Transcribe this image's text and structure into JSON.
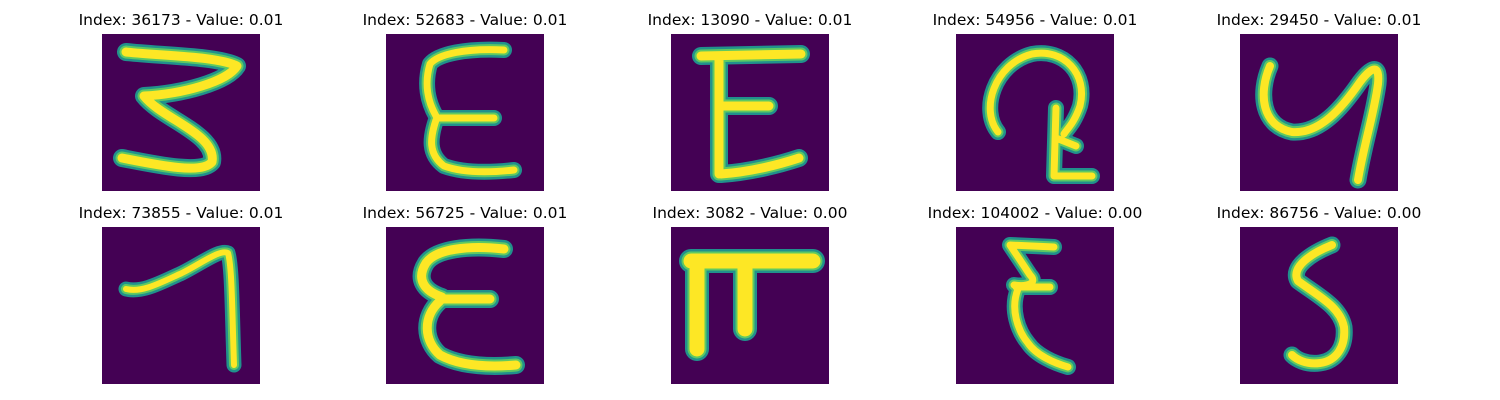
{
  "colors": {
    "background": "#ffffff",
    "image_background": "#440154",
    "stroke_edge": "#21918c",
    "stroke_mid": "#5ec962",
    "stroke_core": "#fde725"
  },
  "panels": [
    {
      "title": "Index: 36173 - Value: 0.01",
      "index": 36173,
      "value": 0.01
    },
    {
      "title": "Index: 52683 - Value: 0.01",
      "index": 52683,
      "value": 0.01
    },
    {
      "title": "Index: 13090 - Value: 0.01",
      "index": 13090,
      "value": 0.01
    },
    {
      "title": "Index: 54956 - Value: 0.01",
      "index": 54956,
      "value": 0.01
    },
    {
      "title": "Index: 29450 - Value: 0.01",
      "index": 29450,
      "value": 0.01
    },
    {
      "title": "Index: 73855 - Value: 0.01",
      "index": 73855,
      "value": 0.01
    },
    {
      "title": "Index: 56725 - Value: 0.01",
      "index": 56725,
      "value": 0.01
    },
    {
      "title": "Index: 3082 - Value: 0.00",
      "index": 3082,
      "value": 0.0
    },
    {
      "title": "Index: 104002 - Value: 0.00",
      "index": 104002,
      "value": 0.0
    },
    {
      "title": "Index: 86756 - Value: 0.00",
      "index": 86756,
      "value": 0.0
    }
  ]
}
